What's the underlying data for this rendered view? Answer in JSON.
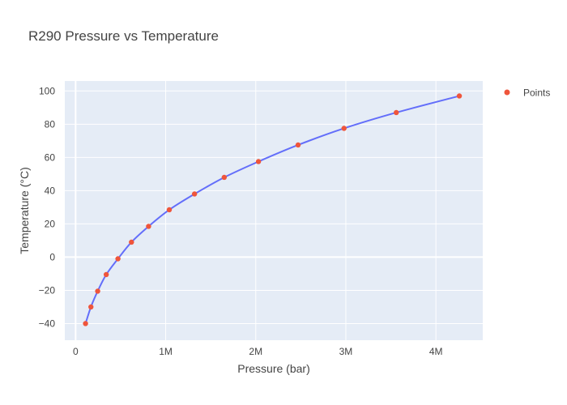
{
  "chart_data": {
    "type": "line",
    "title": "R290 Pressure vs Temperature",
    "xlabel": "Pressure (bar)",
    "ylabel": "Temperature (°C)",
    "xlim": [
      -120000,
      4520000
    ],
    "ylim": [
      -50,
      106
    ],
    "x_ticks": [
      0,
      1000000,
      2000000,
      3000000,
      4000000
    ],
    "x_tick_labels": [
      "0",
      "1M",
      "2M",
      "3M",
      "4M"
    ],
    "y_ticks": [
      -40,
      -20,
      0,
      20,
      40,
      60,
      80,
      100
    ],
    "y_tick_labels": [
      "−40",
      "−20",
      "0",
      "20",
      "40",
      "60",
      "80",
      "100"
    ],
    "grid": true,
    "legend_position": "top-right",
    "series": [
      {
        "name": "Points",
        "mode": "markers",
        "color": "#EF553B",
        "x": [
          110000,
          170000,
          245000,
          340000,
          470000,
          620000,
          810000,
          1040000,
          1320000,
          1650000,
          2030000,
          2470000,
          2980000,
          3560000,
          4260000
        ],
        "y": [
          -40,
          -30,
          -20.5,
          -10.5,
          -1,
          9,
          18.5,
          28.5,
          38,
          48,
          57.5,
          67.5,
          77.5,
          87,
          97
        ]
      },
      {
        "mode": "lines",
        "color": "#636EFA",
        "x": [
          110000,
          170000,
          245000,
          340000,
          470000,
          620000,
          810000,
          1040000,
          1320000,
          1650000,
          2030000,
          2470000,
          2980000,
          3560000,
          4260000
        ],
        "y": [
          -40,
          -30,
          -20.5,
          -10.5,
          -1,
          9,
          18.5,
          28.5,
          38,
          48,
          57.5,
          67.5,
          77.5,
          87,
          97
        ]
      }
    ]
  }
}
